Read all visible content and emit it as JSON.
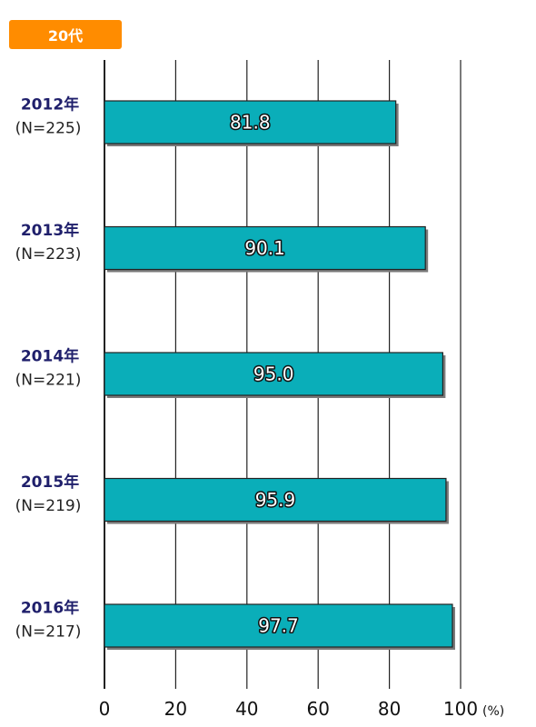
{
  "badge": {
    "label": "20代",
    "color": "#ff8c00"
  },
  "chart_data": {
    "type": "bar",
    "orientation": "horizontal",
    "categories": [
      "2012年",
      "2013年",
      "2014年",
      "2015年",
      "2016年"
    ],
    "sample_sizes": [
      "(N=225)",
      "(N=223)",
      "(N=221)",
      "(N=219)",
      "(N=217)"
    ],
    "values": [
      81.8,
      90.1,
      95.0,
      95.9,
      97.7
    ],
    "value_labels": [
      "81.8",
      "90.1",
      "95.0",
      "95.9",
      "97.7"
    ],
    "xlim": [
      0,
      100
    ],
    "xticks": [
      0,
      20,
      40,
      60,
      80,
      100
    ],
    "x_unit": "(%)",
    "bar_color": "#0aaeb9",
    "category_color": "#1f1f6b",
    "grid": true
  }
}
